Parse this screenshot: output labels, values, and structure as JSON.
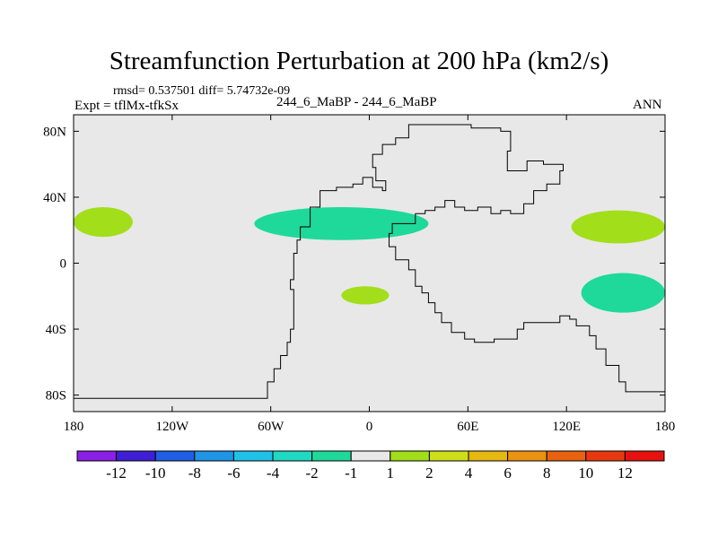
{
  "title": "Streamfunction Perturbation at 200 hPa (km2/s)",
  "stats_line": "rmsd= 0.537501 diff= 5.74732e-09",
  "experiment_label": "Expt = tflMx-tfkSx",
  "runs_label": "244_6_MaBP - 244_6_MaBP",
  "season_label": "ANN",
  "chart_data": {
    "type": "contour-map",
    "projection": "cylindrical-equidistant",
    "lon_range": [
      -180,
      180
    ],
    "lat_range": [
      -90,
      90
    ],
    "x_ticks": [
      {
        "value": -180,
        "label": "180"
      },
      {
        "value": -120,
        "label": "120W"
      },
      {
        "value": -60,
        "label": "60W"
      },
      {
        "value": 0,
        "label": "0"
      },
      {
        "value": 60,
        "label": "60E"
      },
      {
        "value": 120,
        "label": "120E"
      },
      {
        "value": 180,
        "label": "180"
      }
    ],
    "y_ticks": [
      {
        "value": 80,
        "label": "80N"
      },
      {
        "value": 40,
        "label": "40N"
      },
      {
        "value": 0,
        "label": "0"
      },
      {
        "value": -40,
        "label": "40S"
      },
      {
        "value": -80,
        "label": "80S"
      }
    ],
    "colorbar": {
      "colors": [
        "#8a1fe6",
        "#3f1fd6",
        "#1f5fe6",
        "#1f95e6",
        "#1fc2e6",
        "#1fd9c2",
        "#1fd99a",
        "#e8e8e8",
        "#a2de1a",
        "#cede1a",
        "#e6b812",
        "#eb9212",
        "#e8620f",
        "#e8380f",
        "#e6120f"
      ],
      "labels": [
        "-12",
        "-10",
        "-8",
        "-6",
        "-4",
        "-2",
        "-1",
        "1",
        "2",
        "4",
        "6",
        "8",
        "10",
        "12"
      ]
    },
    "background_color": "#e8e8e8",
    "anomalies": [
      {
        "name": "positive-anomaly-west-pacific",
        "level": 2,
        "color": "#a2de1a",
        "lon_min": -180,
        "lon_max": -144,
        "lat_min": 16,
        "lat_max": 34
      },
      {
        "name": "negative-anomaly-atlantic-north",
        "level": -1,
        "color": "#1fd99a",
        "lon_min": -70,
        "lon_max": 36,
        "lat_min": 14,
        "lat_max": 34
      },
      {
        "name": "positive-anomaly-atlantic-south",
        "level": 2,
        "color": "#a2de1a",
        "lon_min": -17,
        "lon_max": 12,
        "lat_min": -25,
        "lat_max": -14
      },
      {
        "name": "positive-anomaly-pacific-north",
        "level": 2,
        "color": "#a2de1a",
        "lon_min": 123,
        "lon_max": 180,
        "lat_min": 12,
        "lat_max": 32
      },
      {
        "name": "negative-anomaly-pacific-south",
        "level": -1,
        "color": "#1fd99a",
        "lon_min": 129,
        "lon_max": 180,
        "lat_min": -30,
        "lat_max": -6
      }
    ],
    "coastline": [
      [
        -180,
        -82
      ],
      [
        -63,
        -82
      ],
      [
        -62,
        -72
      ],
      [
        -58,
        -64
      ],
      [
        -54,
        -56
      ],
      [
        -50,
        -48
      ],
      [
        -48,
        -40
      ],
      [
        -46,
        -30
      ],
      [
        -46,
        -16
      ],
      [
        -48,
        -10
      ],
      [
        -46,
        -2
      ],
      [
        -46,
        6
      ],
      [
        -44,
        14
      ],
      [
        -42,
        22
      ],
      [
        -36,
        34
      ],
      [
        -30,
        44
      ],
      [
        -20,
        46
      ],
      [
        -10,
        48
      ],
      [
        -4,
        52
      ],
      [
        2,
        46
      ],
      [
        8,
        44
      ],
      [
        10,
        50
      ],
      [
        4,
        58
      ],
      [
        2,
        66
      ],
      [
        8,
        72
      ],
      [
        16,
        76
      ],
      [
        24,
        80
      ],
      [
        24,
        84
      ],
      [
        42,
        84
      ],
      [
        62,
        82
      ],
      [
        80,
        80
      ],
      [
        86,
        68
      ],
      [
        84,
        56
      ],
      [
        96,
        62
      ],
      [
        106,
        60
      ],
      [
        118,
        56
      ],
      [
        116,
        48
      ],
      [
        108,
        44
      ],
      [
        100,
        36
      ],
      [
        94,
        30
      ],
      [
        86,
        32
      ],
      [
        80,
        30
      ],
      [
        74,
        34
      ],
      [
        66,
        32
      ],
      [
        58,
        34
      ],
      [
        52,
        38
      ],
      [
        46,
        34
      ],
      [
        40,
        32
      ],
      [
        34,
        30
      ],
      [
        28,
        24
      ],
      [
        14,
        18
      ],
      [
        12,
        10
      ],
      [
        16,
        2
      ],
      [
        24,
        -4
      ],
      [
        28,
        -14
      ],
      [
        32,
        -18
      ],
      [
        36,
        -24
      ],
      [
        40,
        -30
      ],
      [
        44,
        -36
      ],
      [
        50,
        -42
      ],
      [
        58,
        -46
      ],
      [
        64,
        -48
      ],
      [
        76,
        -46
      ],
      [
        90,
        -40
      ],
      [
        94,
        -36
      ],
      [
        104,
        -36
      ],
      [
        110,
        -36
      ],
      [
        116,
        -32
      ],
      [
        122,
        -34
      ],
      [
        126,
        -38
      ],
      [
        134,
        -44
      ],
      [
        138,
        -52
      ],
      [
        144,
        -62
      ],
      [
        152,
        -72
      ],
      [
        156,
        -78
      ],
      [
        180,
        -82
      ]
    ]
  }
}
